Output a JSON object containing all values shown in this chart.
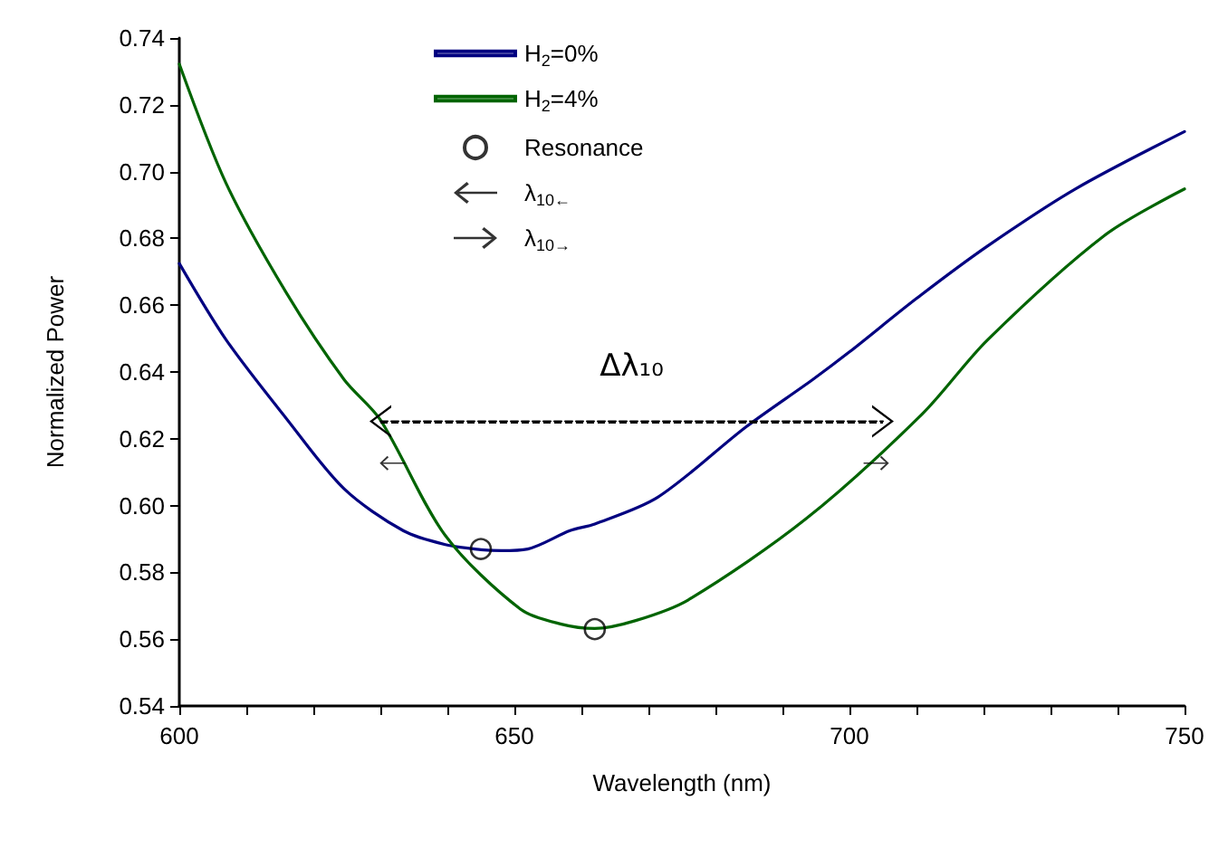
{
  "chart_data": {
    "type": "line",
    "xlabel": "Wavelength (nm)",
    "ylabel": "Normalized Power",
    "xlim": [
      600,
      750
    ],
    "xticks": [
      600,
      {
        "value": 610,
        "label": null
      },
      {
        "value": 620,
        "label": null
      },
      {
        "value": 630,
        "label": null
      },
      {
        "value": 640,
        "label": null
      },
      650,
      {
        "value": 660,
        "label": null
      },
      {
        "value": 670,
        "label": null
      },
      {
        "value": 680,
        "label": null
      },
      {
        "value": 690,
        "label": null
      },
      700,
      {
        "value": 710,
        "label": null
      },
      {
        "value": 720,
        "label": null
      },
      {
        "value": 730,
        "label": null
      },
      {
        "value": 740,
        "label": null
      },
      750
    ],
    "ylim": [
      0.54,
      0.74
    ],
    "yticks": [
      0.54,
      0.56,
      0.58,
      {
        "value": 0.6,
        "label": "0.60"
      },
      0.62,
      0.64,
      0.66,
      0.68,
      {
        "value": 0.7,
        "label": "0.70"
      },
      0.72,
      0.74
    ],
    "grid": false,
    "legend": "top left",
    "series": [
      {
        "name": "H$_{2}$=0%",
        "color": "#000080",
        "x": [
          600,
          607,
          616,
          624.6,
          633.4,
          639.7,
          645,
          648,
          652,
          658.3,
          662,
          671.4,
          684.6,
          694.5,
          700,
          710,
          720.6,
          733.7,
          750
        ],
        "values": [
          0.6725,
          0.6496,
          0.626,
          0.605,
          0.5925,
          0.5883,
          0.5868,
          0.5865,
          0.587,
          0.5925,
          0.5945,
          0.6025,
          0.6236,
          0.6377,
          0.646,
          0.662,
          0.6777,
          0.6948,
          0.712
        ]
      },
      {
        "name": "H$_{2}$=4%",
        "color": "#006400",
        "x": [
          600,
          607,
          616,
          624.6,
          630,
          639.7,
          650.9,
          657,
          662,
          668,
          675.9,
          693.5,
          710.8,
          720.6,
          738,
          750
        ],
        "values": [
          0.7322,
          0.6964,
          0.6636,
          0.6377,
          0.6257,
          0.591,
          0.569,
          0.5645,
          0.5632,
          0.5655,
          0.5717,
          0.596,
          0.6273,
          0.6496,
          0.6808,
          0.6948
        ]
      },
      {
        "name": "Resonance",
        "type": "scatter",
        "color": "#000000",
        "marker": "circle",
        "x": [
          645,
          662
        ],
        "values": [
          0.587,
          0.563
        ]
      },
      {
        "name": "λ$_{10←}$",
        "type": "scatter",
        "color": "#000000",
        "x": [
          631.8
        ],
        "values": [
          0.6127
        ]
      },
      {
        "name": "λ$_{10→}$",
        "type": "scatter",
        "color": "#000000",
        "x": [
          704
        ],
        "values": [
          0.6127
        ]
      },
      {
        "color": "#000000",
        "line_style": "dashed",
        "marker": "triangle",
        "x": [
          630,
          705
        ],
        "values": [
          0.6252,
          0.6252
        ]
      }
    ],
    "annotations": [
      "Δλ₁₀"
    ]
  }
}
